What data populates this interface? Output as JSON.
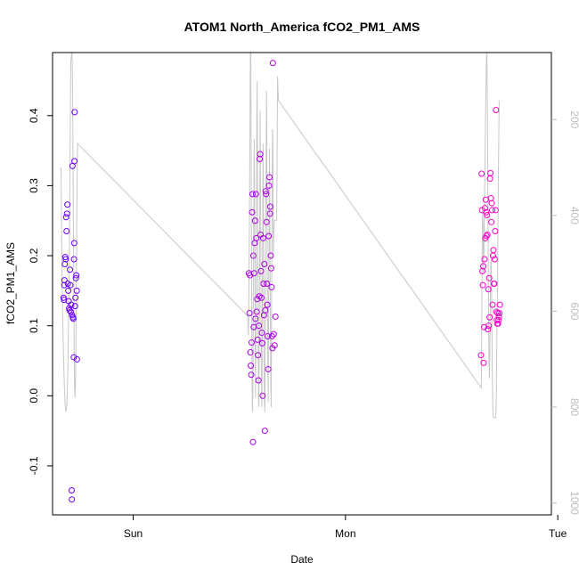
{
  "chart_data": {
    "type": "scatter",
    "title": "ATOM1 North_America fCO2_PM1_AMS",
    "xlabel": "Date",
    "ylabel": "fCO2_PM1_AMS",
    "x_ticks": [
      "Sun",
      "Mon",
      "Tue"
    ],
    "y_ticks": [
      -0.1,
      0.0,
      0.1,
      0.2,
      0.3,
      0.4
    ],
    "y_tick_labels": [
      "-0.1",
      "0.0",
      "0.1",
      "0.2",
      "0.3",
      "0.4"
    ],
    "y2_ticks": [
      200,
      400,
      600,
      800,
      1000
    ],
    "y2_tick_labels": [
      "200",
      "400",
      "600",
      "800",
      "1000"
    ],
    "y2_reversed": true,
    "xlim": [
      -0.38,
      1.97
    ],
    "ylim": [
      -0.17,
      0.49
    ],
    "y2lim": [
      1025,
      60
    ],
    "grid": false,
    "point_colors": {
      "start": "#6a00ff",
      "end": "#ff00c8"
    },
    "line_color": "#c8c8c8",
    "series": [
      {
        "values": [
          [
            -0.328,
            0.14
          ],
          [
            -0.326,
            0.137
          ],
          [
            -0.325,
            0.158
          ],
          [
            -0.324,
            0.165
          ],
          [
            -0.322,
            0.188
          ],
          [
            -0.32,
            0.198
          ],
          [
            -0.318,
            0.195
          ],
          [
            -0.316,
            0.255
          ],
          [
            -0.314,
            0.235
          ],
          [
            -0.312,
            0.26
          ],
          [
            -0.31,
            0.273
          ],
          [
            -0.308,
            0.16
          ],
          [
            -0.306,
            0.15
          ],
          [
            -0.304,
            0.135
          ],
          [
            -0.302,
            0.125
          ],
          [
            -0.3,
            0.122
          ],
          [
            -0.298,
            0.18
          ],
          [
            -0.296,
            0.158
          ],
          [
            -0.294,
            0.12
          ],
          [
            -0.292,
            0.13
          ],
          [
            -0.29,
            -0.135
          ],
          [
            -0.289,
            -0.148
          ],
          [
            -0.288,
            0.115
          ],
          [
            -0.286,
            0.328
          ],
          [
            -0.284,
            0.112
          ],
          [
            -0.282,
            0.11
          ],
          [
            -0.28,
            0.055
          ],
          [
            -0.279,
            0.195
          ],
          [
            -0.278,
            0.218
          ],
          [
            -0.277,
            0.335
          ],
          [
            -0.276,
            0.405
          ],
          [
            -0.274,
            0.128
          ],
          [
            -0.272,
            0.14
          ],
          [
            -0.27,
            0.168
          ],
          [
            -0.268,
            0.172
          ],
          [
            -0.266,
            0.15
          ],
          [
            -0.265,
            0.052
          ],
          [
            0.545,
            0.175
          ],
          [
            0.548,
            0.118
          ],
          [
            0.55,
            0.172
          ],
          [
            0.552,
            0.062
          ],
          [
            0.554,
            0.043
          ],
          [
            0.556,
            0.03
          ],
          [
            0.558,
            0.076
          ],
          [
            0.56,
            0.262
          ],
          [
            0.562,
            0.288
          ],
          [
            0.564,
            -0.066
          ],
          [
            0.566,
            0.2
          ],
          [
            0.568,
            0.098
          ],
          [
            0.57,
            0.175
          ],
          [
            0.572,
            0.218
          ],
          [
            0.574,
            0.25
          ],
          [
            0.576,
            0.11
          ],
          [
            0.578,
            0.288
          ],
          [
            0.58,
            0.225
          ],
          [
            0.582,
            0.12
          ],
          [
            0.584,
            0.138
          ],
          [
            0.586,
            0.08
          ],
          [
            0.588,
            0.058
          ],
          [
            0.59,
            0.022
          ],
          [
            0.592,
            0.1
          ],
          [
            0.594,
            0.142
          ],
          [
            0.596,
            0.338
          ],
          [
            0.598,
            0.345
          ],
          [
            0.6,
            0.23
          ],
          [
            0.602,
            0.178
          ],
          [
            0.604,
            0.14
          ],
          [
            0.606,
            0.09
          ],
          [
            0.608,
            0.075
          ],
          [
            0.61,
            0.0
          ],
          [
            0.612,
            0.225
          ],
          [
            0.614,
            0.16
          ],
          [
            0.616,
            0.115
          ],
          [
            0.618,
            0.188
          ],
          [
            0.62,
            -0.05
          ],
          [
            0.622,
            0.122
          ],
          [
            0.624,
            0.292
          ],
          [
            0.626,
            0.288
          ],
          [
            0.628,
            0.248
          ],
          [
            0.63,
            0.16
          ],
          [
            0.632,
            0.13
          ],
          [
            0.634,
            0.085
          ],
          [
            0.636,
            0.038
          ],
          [
            0.638,
            0.228
          ],
          [
            0.64,
            0.3
          ],
          [
            0.642,
            0.312
          ],
          [
            0.644,
            0.26
          ],
          [
            0.646,
            0.27
          ],
          [
            0.648,
            0.2
          ],
          [
            0.65,
            0.182
          ],
          [
            0.652,
            0.155
          ],
          [
            0.654,
            0.085
          ],
          [
            0.656,
            0.068
          ],
          [
            0.658,
            0.475
          ],
          [
            0.662,
            0.088
          ],
          [
            0.666,
            0.072
          ],
          [
            0.67,
            0.113
          ],
          [
            1.638,
            0.058
          ],
          [
            1.641,
            0.317
          ],
          [
            1.643,
            0.265
          ],
          [
            1.645,
            0.178
          ],
          [
            1.647,
            0.158
          ],
          [
            1.649,
            0.185
          ],
          [
            1.651,
            0.047
          ],
          [
            1.653,
            0.098
          ],
          [
            1.655,
            0.195
          ],
          [
            1.657,
            0.268
          ],
          [
            1.659,
            0.225
          ],
          [
            1.661,
            0.28
          ],
          [
            1.663,
            0.262
          ],
          [
            1.665,
            0.228
          ],
          [
            1.667,
            0.258
          ],
          [
            1.669,
            0.23
          ],
          [
            1.671,
            0.095
          ],
          [
            1.673,
            0.152
          ],
          [
            1.675,
            0.1
          ],
          [
            1.677,
            0.168
          ],
          [
            1.679,
            0.112
          ],
          [
            1.681,
            0.31
          ],
          [
            1.683,
            0.318
          ],
          [
            1.685,
            0.282
          ],
          [
            1.687,
            0.248
          ],
          [
            1.689,
            0.275
          ],
          [
            1.691,
            0.265
          ],
          [
            1.693,
            0.13
          ],
          [
            1.695,
            0.2
          ],
          [
            1.697,
            0.208
          ],
          [
            1.699,
            0.16
          ],
          [
            1.701,
            0.16
          ],
          [
            1.703,
            0.195
          ],
          [
            1.705,
            0.235
          ],
          [
            1.707,
            0.265
          ],
          [
            1.709,
            0.408
          ],
          [
            1.711,
            0.12
          ],
          [
            1.713,
            0.108
          ],
          [
            1.715,
            0.103
          ],
          [
            1.717,
            0.118
          ],
          [
            1.719,
            0.103
          ],
          [
            1.721,
            0.108
          ],
          [
            1.723,
            0.113
          ],
          [
            1.725,
            0.118
          ],
          [
            1.727,
            0.13
          ]
        ]
      },
      {
        "line_values": [
          [
            -0.34,
            300
          ],
          [
            -0.336,
            500
          ],
          [
            -0.332,
            620
          ],
          [
            -0.328,
            700
          ],
          [
            -0.324,
            760
          ],
          [
            -0.32,
            800
          ],
          [
            -0.316,
            810
          ],
          [
            -0.312,
            790
          ],
          [
            -0.308,
            720
          ],
          [
            -0.304,
            600
          ],
          [
            -0.3,
            450
          ],
          [
            -0.298,
            300
          ],
          [
            -0.296,
            180
          ],
          [
            -0.294,
            80
          ],
          [
            -0.29,
            60
          ],
          [
            -0.288,
            60
          ],
          [
            -0.286,
            120
          ],
          [
            -0.284,
            250
          ],
          [
            -0.282,
            400
          ],
          [
            -0.28,
            550
          ],
          [
            -0.278,
            680
          ],
          [
            -0.276,
            760
          ],
          [
            -0.274,
            780
          ],
          [
            -0.272,
            750
          ],
          [
            -0.27,
            680
          ],
          [
            -0.268,
            560
          ],
          [
            -0.266,
            420
          ],
          [
            -0.264,
            300
          ],
          [
            -0.262,
            250
          ],
          [
            0.54,
            610
          ],
          [
            0.542,
            650
          ],
          [
            0.544,
            600
          ],
          [
            0.546,
            500
          ],
          [
            0.548,
            380
          ],
          [
            0.55,
            220
          ],
          [
            0.552,
            60
          ],
          [
            0.554,
            60
          ],
          [
            0.556,
            300
          ],
          [
            0.558,
            560
          ],
          [
            0.56,
            760
          ],
          [
            0.562,
            810
          ],
          [
            0.564,
            760
          ],
          [
            0.566,
            560
          ],
          [
            0.568,
            360
          ],
          [
            0.57,
            240
          ],
          [
            0.572,
            420
          ],
          [
            0.574,
            640
          ],
          [
            0.576,
            780
          ],
          [
            0.578,
            640
          ],
          [
            0.58,
            420
          ],
          [
            0.582,
            200
          ],
          [
            0.584,
            120
          ],
          [
            0.586,
            340
          ],
          [
            0.588,
            600
          ],
          [
            0.59,
            780
          ],
          [
            0.592,
            800
          ],
          [
            0.594,
            640
          ],
          [
            0.596,
            400
          ],
          [
            0.598,
            180
          ],
          [
            0.6,
            360
          ],
          [
            0.602,
            580
          ],
          [
            0.604,
            760
          ],
          [
            0.606,
            800
          ],
          [
            0.608,
            620
          ],
          [
            0.61,
            400
          ],
          [
            0.612,
            250
          ],
          [
            0.614,
            440
          ],
          [
            0.616,
            660
          ],
          [
            0.618,
            790
          ],
          [
            0.62,
            810
          ],
          [
            0.622,
            680
          ],
          [
            0.624,
            480
          ],
          [
            0.626,
            280
          ],
          [
            0.628,
            140
          ],
          [
            0.63,
            320
          ],
          [
            0.632,
            520
          ],
          [
            0.634,
            700
          ],
          [
            0.636,
            790
          ],
          [
            0.638,
            600
          ],
          [
            0.64,
            420
          ],
          [
            0.642,
            260
          ],
          [
            0.644,
            420
          ],
          [
            0.646,
            600
          ],
          [
            0.648,
            760
          ],
          [
            0.65,
            800
          ],
          [
            0.652,
            600
          ],
          [
            0.654,
            380
          ],
          [
            0.656,
            220
          ],
          [
            0.658,
            250
          ],
          [
            0.66,
            480
          ],
          [
            0.664,
            420
          ],
          [
            0.666,
            410
          ],
          [
            0.668,
            410
          ],
          [
            0.672,
            410
          ],
          [
            0.676,
            410
          ],
          [
            0.68,
            110
          ],
          [
            0.684,
            160
          ],
          [
            1.64,
            760
          ],
          [
            1.642,
            620
          ],
          [
            1.644,
            480
          ],
          [
            1.646,
            390
          ],
          [
            1.648,
            420
          ],
          [
            1.65,
            520
          ],
          [
            1.652,
            480
          ],
          [
            1.654,
            400
          ],
          [
            1.656,
            340
          ],
          [
            1.658,
            260
          ],
          [
            1.66,
            180
          ],
          [
            1.662,
            130
          ],
          [
            1.664,
            70
          ],
          [
            1.666,
            60
          ],
          [
            1.668,
            140
          ],
          [
            1.67,
            280
          ],
          [
            1.672,
            440
          ],
          [
            1.674,
            600
          ],
          [
            1.676,
            700
          ],
          [
            1.678,
            740
          ],
          [
            1.68,
            690
          ],
          [
            1.682,
            600
          ],
          [
            1.684,
            520
          ],
          [
            1.686,
            480
          ],
          [
            1.688,
            530
          ],
          [
            1.69,
            640
          ],
          [
            1.692,
            740
          ],
          [
            1.694,
            800
          ],
          [
            1.696,
            820
          ],
          [
            1.698,
            822
          ],
          [
            1.7,
            822
          ],
          [
            1.704,
            822
          ],
          [
            1.708,
            822
          ],
          [
            1.71,
            800
          ],
          [
            1.712,
            700
          ],
          [
            1.716,
            560
          ],
          [
            1.72,
            330
          ],
          [
            1.724,
            160
          ]
        ]
      }
    ]
  }
}
